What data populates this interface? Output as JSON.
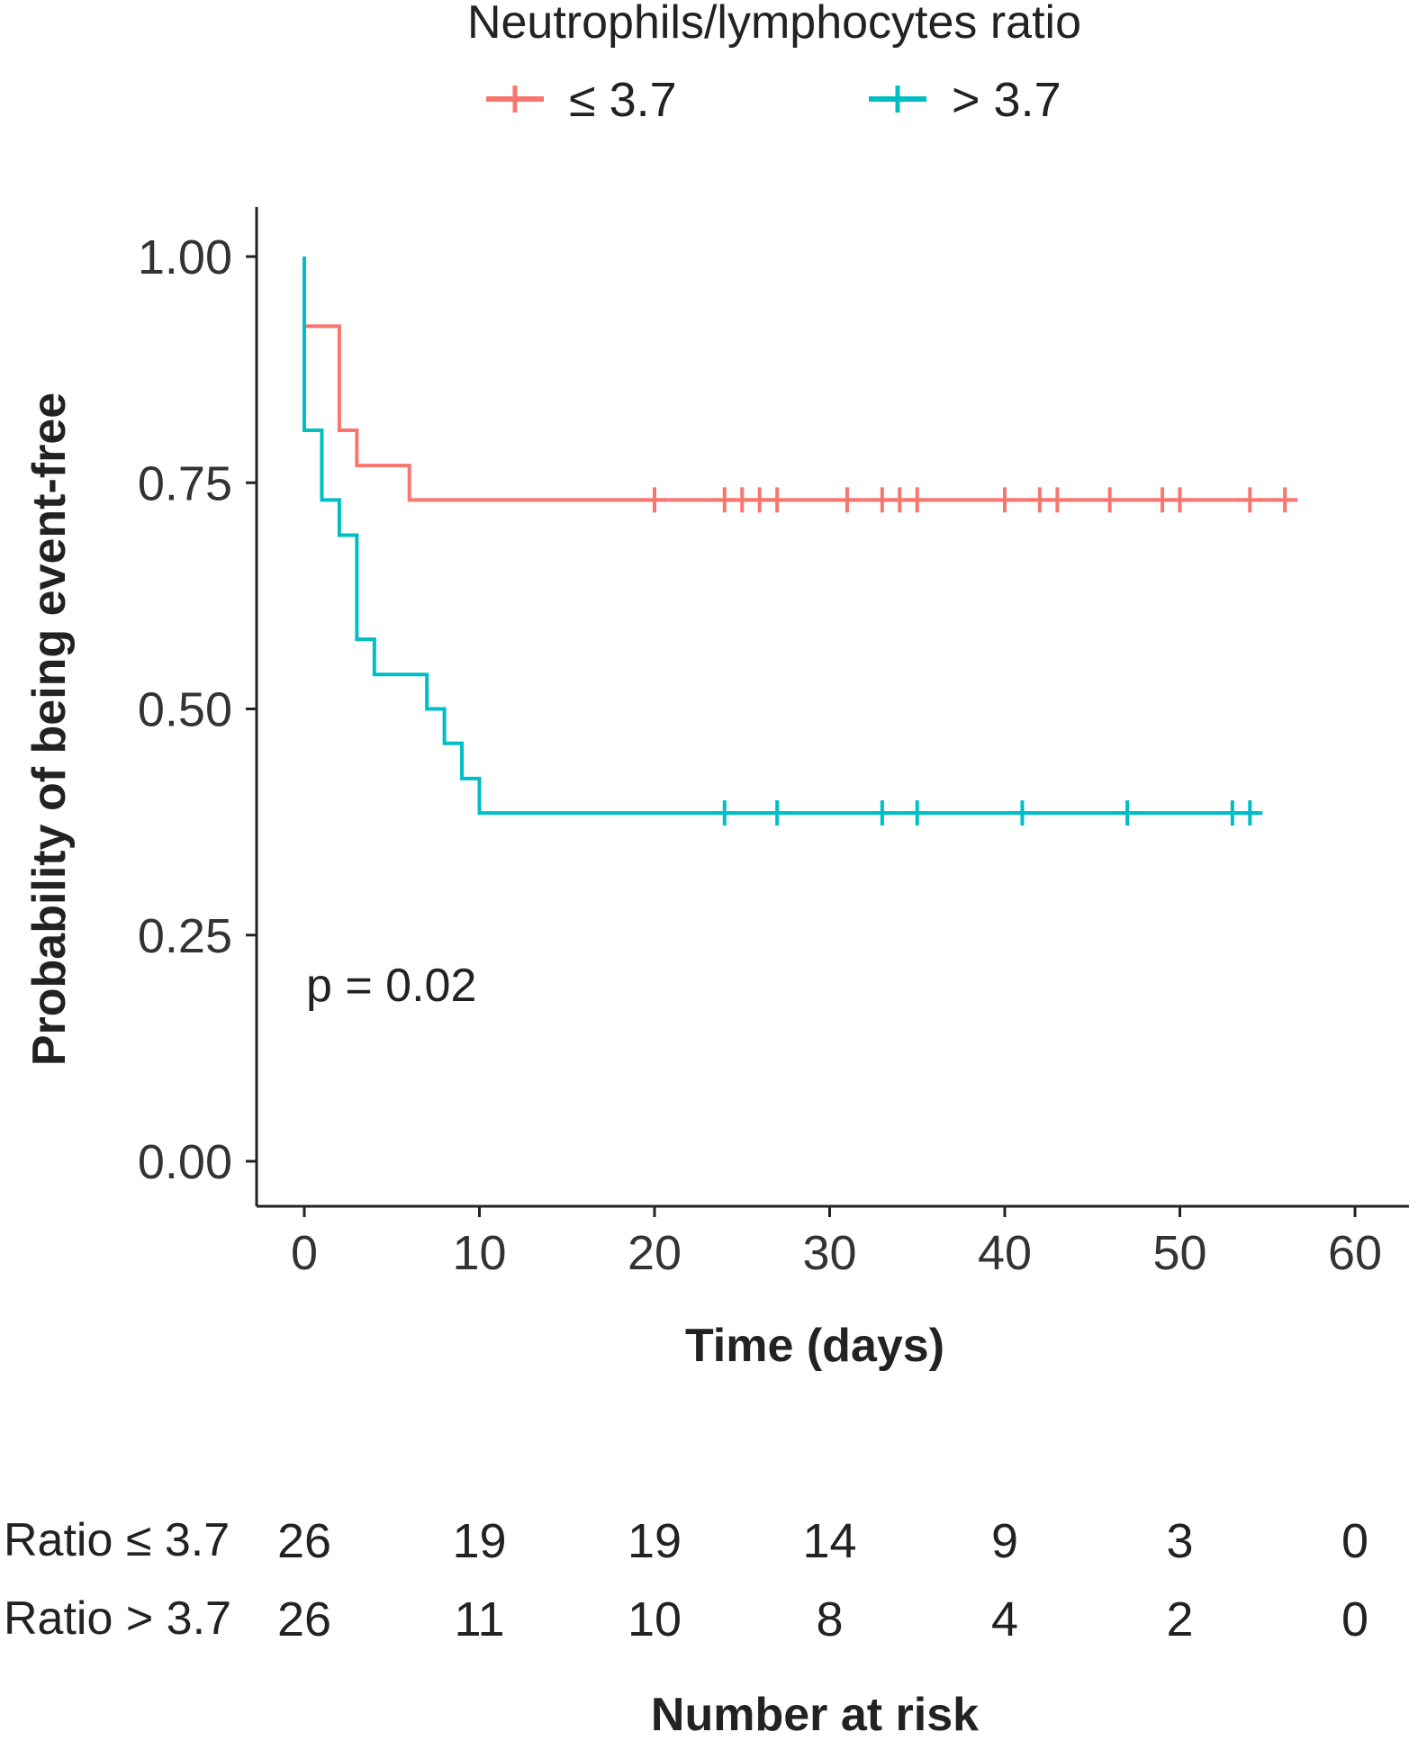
{
  "chart_data": {
    "type": "line",
    "subtype": "kaplan-meier",
    "legend_title": "Neutrophils/lymphocytes ratio",
    "legend_position": "top",
    "xlabel": "Time (days)",
    "ylabel": "Probability of being event-free",
    "xlim": [
      0,
      60
    ],
    "ylim": [
      0,
      1
    ],
    "x_ticks": [
      "0",
      "10",
      "20",
      "30",
      "40",
      "50",
      "60"
    ],
    "y_ticks": [
      "0.00",
      "0.25",
      "0.50",
      "0.75",
      "1.00"
    ],
    "grid": false,
    "annotation": "p = 0.02",
    "series": [
      {
        "name": "≤ 3.7",
        "color": "#F8766D",
        "steps": [
          [
            0,
            0.923
          ],
          [
            2,
            0.808
          ],
          [
            3,
            0.769
          ],
          [
            6,
            0.731
          ],
          [
            56.5,
            0.731
          ]
        ],
        "censor_times": [
          20,
          24,
          25,
          26,
          27,
          31,
          33,
          34,
          35,
          40,
          42,
          43,
          46,
          49,
          50,
          54,
          56
        ]
      },
      {
        "name": "> 3.7",
        "color": "#00BFC4",
        "steps": [
          [
            0,
            1.0
          ],
          [
            0,
            0.808
          ],
          [
            1,
            0.731
          ],
          [
            2,
            0.692
          ],
          [
            3,
            0.577
          ],
          [
            4,
            0.538
          ],
          [
            7,
            0.5
          ],
          [
            8,
            0.462
          ],
          [
            9,
            0.423
          ],
          [
            10,
            0.385
          ],
          [
            54.5,
            0.385
          ]
        ],
        "censor_times": [
          24,
          27,
          33,
          35,
          41,
          47,
          53,
          54
        ]
      }
    ],
    "risk_table": {
      "title": "Number at risk",
      "times": [
        "0",
        "10",
        "20",
        "30",
        "40",
        "50",
        "60"
      ],
      "rows": [
        {
          "label": "Ratio ≤ 3.7",
          "values": [
            "26",
            "19",
            "19",
            "14",
            "9",
            "3",
            "0"
          ]
        },
        {
          "label": "Ratio > 3.7",
          "values": [
            "26",
            "11",
            "10",
            "8",
            "4",
            "2",
            "0"
          ]
        }
      ]
    }
  }
}
